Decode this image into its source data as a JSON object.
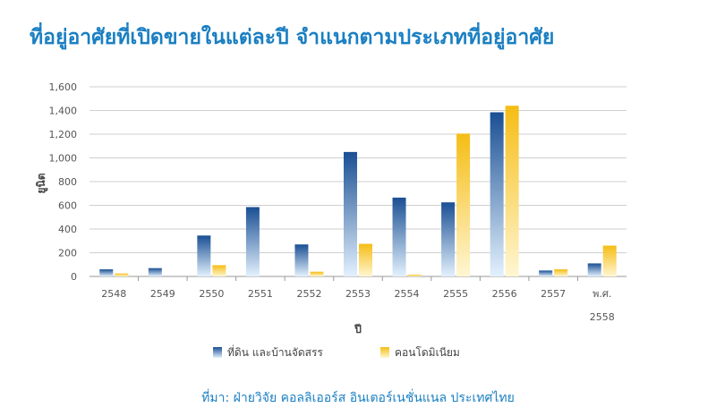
{
  "title": "ที่อยู่อาศัยที่เปิดขายในแต่ละปี จำแนกตามประเภทที่อยู่อาศัย",
  "source": "ที่มา: ฝ่ายวิจัย คอลลิเออร์ส อินเตอร์เนชั่นแนล ประเทศไทย",
  "chart_data": {
    "type": "bar",
    "categories": [
      "2548",
      "2549",
      "2550",
      "2551",
      "2552",
      "2553",
      "2554",
      "2555",
      "2556",
      "2557",
      "พ.ศ. 2558"
    ],
    "series": [
      {
        "name": "ที่ดิน และบ้านจัดสรร",
        "values": [
          60,
          70,
          345,
          585,
          270,
          1050,
          665,
          625,
          1385,
          50,
          110
        ],
        "color": "#1f5fa3"
      },
      {
        "name": "คอนโดมิเนียม",
        "values": [
          25,
          0,
          95,
          0,
          40,
          275,
          15,
          1205,
          1440,
          60,
          260
        ],
        "color": "#f7c430"
      }
    ],
    "xlabel": "ปี",
    "ylabel": "ยูนิต",
    "ylim": [
      0,
      1600
    ],
    "yticks": [
      "0",
      "200",
      "400",
      "600",
      "800",
      "1,000",
      "1,200",
      "1,400",
      "1,600"
    ],
    "grid": true,
    "legend": "bottom-left"
  }
}
